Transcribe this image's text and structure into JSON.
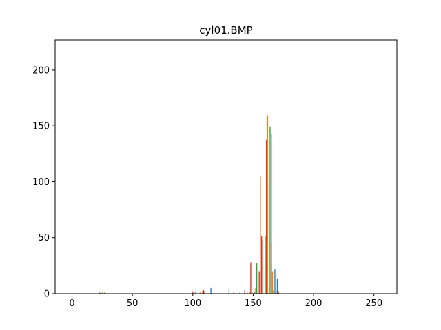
{
  "chart_data": {
    "type": "bar",
    "title": "cyl01.BMP",
    "xlabel": "",
    "ylabel": "",
    "xlim": [
      -14,
      269
    ],
    "ylim": [
      0,
      227
    ],
    "x_ticks": [
      0,
      50,
      100,
      150,
      200,
      250
    ],
    "y_ticks": [
      0,
      50,
      100,
      150,
      200
    ],
    "grid": false,
    "legend": "none",
    "series": [
      {
        "color": "#1f77b4",
        "points": [
          [
            23,
            1
          ],
          [
            102,
            1
          ],
          [
            115,
            5
          ],
          [
            130,
            4
          ],
          [
            145,
            2
          ],
          [
            151,
            2
          ],
          [
            158,
            48
          ],
          [
            165,
            143
          ],
          [
            168,
            22
          ],
          [
            170,
            13
          ]
        ]
      },
      {
        "color": "#ff7f0e",
        "points": [
          [
            25,
            1
          ],
          [
            106,
            1
          ],
          [
            108,
            2
          ],
          [
            147,
            2
          ],
          [
            152,
            5
          ],
          [
            156,
            105
          ],
          [
            162,
            159
          ],
          [
            166,
            20
          ],
          [
            169,
            3
          ]
        ]
      },
      {
        "color": "#2ca02c",
        "points": [
          [
            27,
            1
          ],
          [
            110,
            2
          ],
          [
            139,
            1
          ],
          [
            149,
            2
          ],
          [
            153,
            27
          ],
          [
            160,
            51
          ],
          [
            164,
            149
          ],
          [
            167,
            3
          ]
        ]
      },
      {
        "color": "#d62728",
        "points": [
          [
            100,
            2
          ],
          [
            109,
            3
          ],
          [
            134,
            2
          ],
          [
            143,
            3
          ],
          [
            148,
            28
          ],
          [
            155,
            20
          ],
          [
            157,
            51
          ],
          [
            161,
            138
          ],
          [
            165,
            45
          ],
          [
            171,
            2
          ]
        ]
      }
    ]
  }
}
